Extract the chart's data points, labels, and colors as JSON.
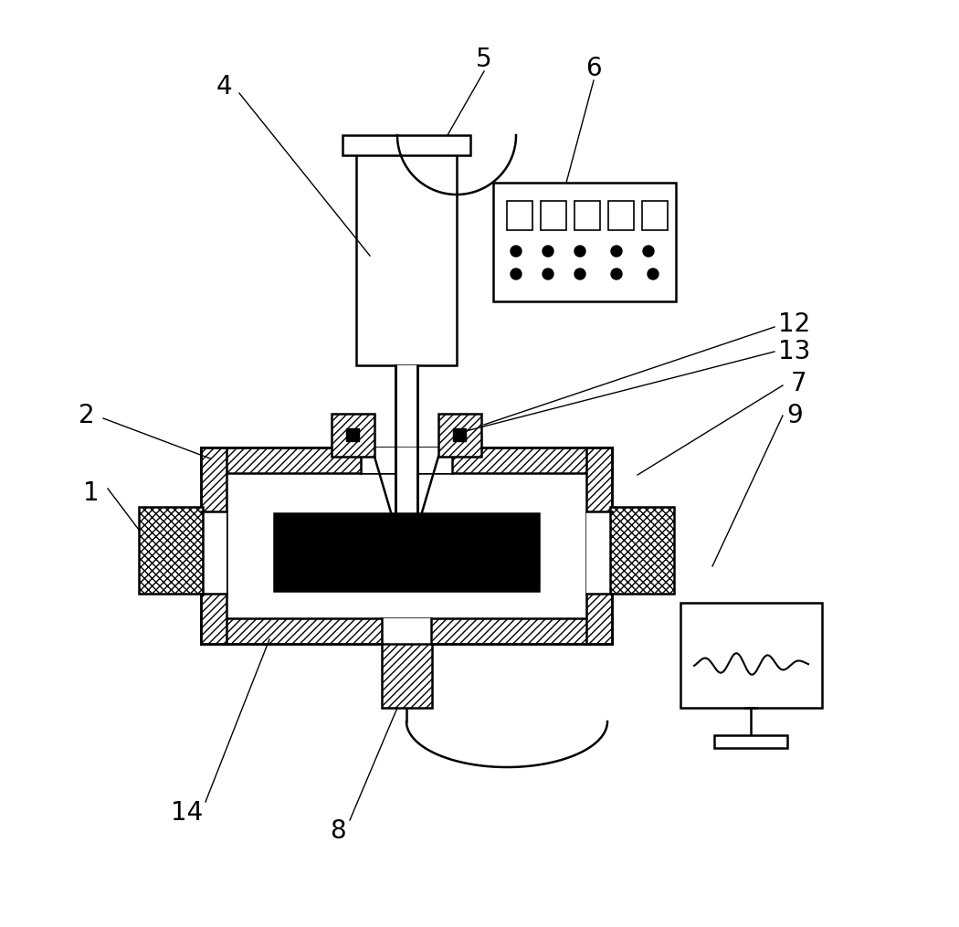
{
  "bg_color": "#ffffff",
  "line_color": "#000000",
  "label_color": "#000000",
  "label_fontsize": 20,
  "fig_w": 10.5,
  "fig_h": 10.15,
  "dpi": 100
}
